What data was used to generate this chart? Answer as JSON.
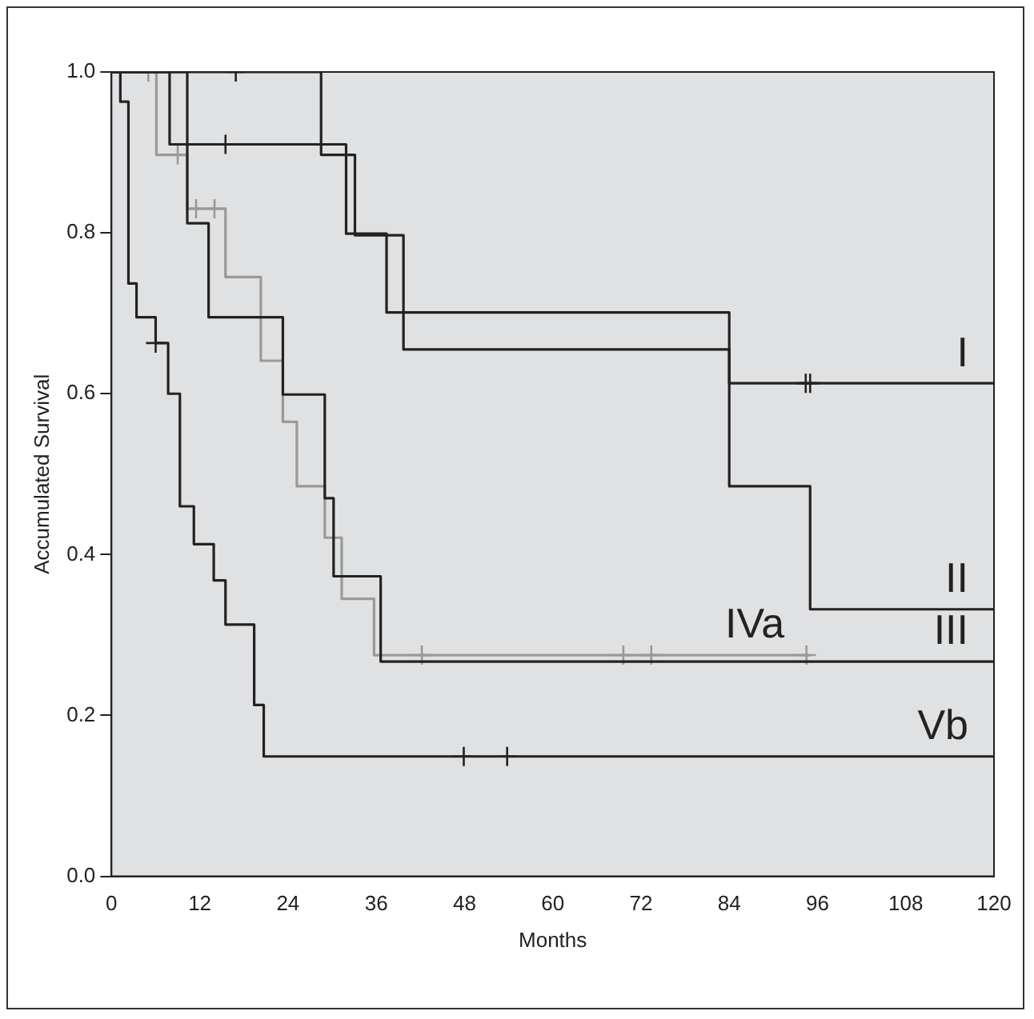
{
  "chart_data": {
    "type": "step",
    "xlabel": "Months",
    "ylabel": "Accumulated Survival",
    "xlim": [
      0,
      120
    ],
    "xticks": [
      0,
      12,
      24,
      36,
      48,
      60,
      72,
      84,
      96,
      108,
      120
    ],
    "ylim": [
      0,
      1
    ],
    "yticks": [
      {
        "value": 0,
        "label": "0.0"
      },
      {
        "value": 0.2,
        "label": "0.2"
      },
      {
        "value": 0.4,
        "label": "0.4"
      },
      {
        "value": 0.6,
        "label": "0.6"
      },
      {
        "value": 0.8,
        "label": "0.8"
      },
      {
        "value": 1,
        "label": "1.0"
      }
    ],
    "grid": false,
    "legend": false,
    "marker": "none",
    "line_style": "solid",
    "series": [
      {
        "name": "I",
        "color": "#222222",
        "x": [
          0,
          28.5,
          33.1,
          39.7,
          84,
          120
        ],
        "values": [
          1,
          0.897,
          0.797,
          0.655,
          0.613,
          0.613
        ]
      },
      {
        "name": "II",
        "color": "#222222",
        "x": [
          0,
          7.9,
          31.9,
          37.4,
          84,
          95,
          120
        ],
        "values": [
          1,
          0.91,
          0.799,
          0.701,
          0.485,
          0.332,
          0.332
        ]
      },
      {
        "name": "III",
        "color": "#222222",
        "x": [
          0,
          10.3,
          13.2,
          23.3,
          29,
          30.2,
          36.6,
          120
        ],
        "values": [
          1,
          0.812,
          0.695,
          0.599,
          0.47,
          0.373,
          0.267,
          0.267
        ]
      },
      {
        "name": "IVa",
        "color": "#999999",
        "x": [
          0,
          6.1,
          10.3,
          15.5,
          20.3,
          23.3,
          25.2,
          29,
          31.3,
          35.7,
          95
        ],
        "values": [
          1,
          0.897,
          0.83,
          0.745,
          0.641,
          0.565,
          0.485,
          0.421,
          0.345,
          0.275,
          0.275
        ]
      },
      {
        "name": "Vb",
        "color": "#222222",
        "x": [
          0,
          1.2,
          2.3,
          3.4,
          6,
          7.7,
          9.3,
          11.2,
          13.9,
          15.5,
          19.4,
          20.7,
          120
        ],
        "values": [
          1,
          0.963,
          0.737,
          0.695,
          0.663,
          0.6,
          0.46,
          0.413,
          0.368,
          0.313,
          0.213,
          0.149,
          0.149
        ]
      },
      {
        "type": "scatter",
        "marker": "cross",
        "color": "#222222",
        "x": [
          16.9,
          15.5,
          94.4,
          95,
          6,
          47.9,
          53.8
        ],
        "values": [
          1,
          0.91,
          0.613,
          0.613,
          0.663,
          0.149,
          0.149
        ]
      },
      {
        "type": "scatter",
        "marker": "cross",
        "color": "#999999",
        "x": [
          5,
          9,
          11.5,
          14,
          42.2,
          69.6,
          73.4,
          94.5
        ],
        "values": [
          1,
          0.897,
          0.83,
          0.83,
          0.275,
          0.275,
          0.275,
          0.275
        ]
      }
    ]
  }
}
